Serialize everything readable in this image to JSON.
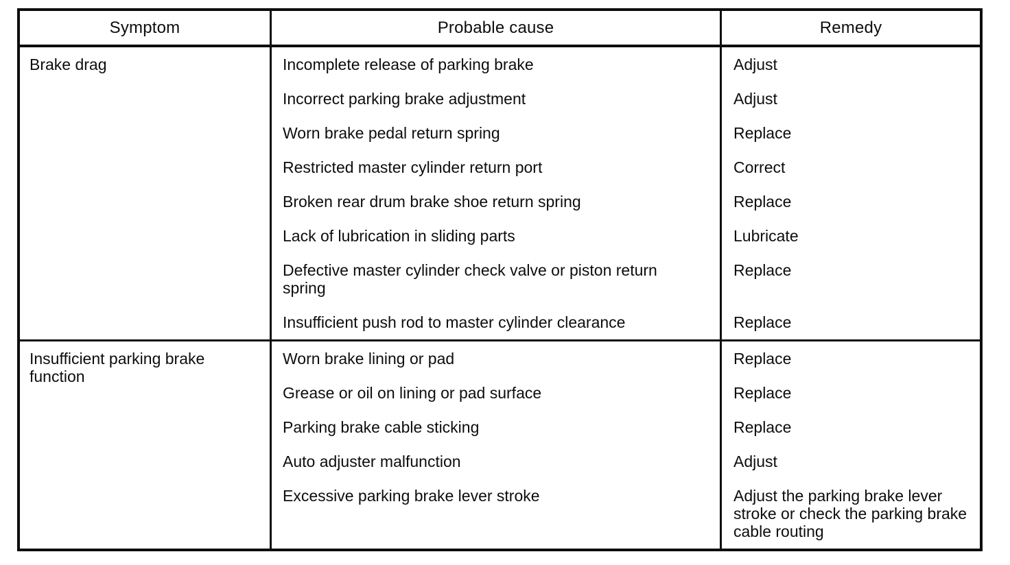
{
  "table": {
    "headers": [
      "Symptom",
      "Probable cause",
      "Remedy"
    ],
    "rows": [
      {
        "symptom": "Brake drag",
        "items": [
          {
            "cause": "Incomplete release of parking brake",
            "remedy": "Adjust"
          },
          {
            "cause": "Incorrect parking brake adjustment",
            "remedy": "Adjust"
          },
          {
            "cause": "Worn brake pedal return spring",
            "remedy": "Replace"
          },
          {
            "cause": "Restricted master cylinder return port",
            "remedy": "Correct"
          },
          {
            "cause": "Broken rear drum brake shoe return spring",
            "remedy": "Replace"
          },
          {
            "cause": "Lack of lubrication in sliding parts",
            "remedy": "Lubricate"
          },
          {
            "cause": "Defective master cylinder check valve or piston return spring",
            "remedy": "Replace"
          },
          {
            "cause": "Insufficient push rod to master cylinder clearance",
            "remedy": "Replace"
          }
        ]
      },
      {
        "symptom": "Insufficient parking brake function",
        "items": [
          {
            "cause": "Worn brake lining or pad",
            "remedy": "Replace"
          },
          {
            "cause": "Grease or oil on lining or pad surface",
            "remedy": "Replace"
          },
          {
            "cause": "Parking brake cable sticking",
            "remedy": "Replace"
          },
          {
            "cause": "Auto adjuster malfunction",
            "remedy": "Adjust"
          },
          {
            "cause": "Excessive parking brake lever stroke",
            "remedy": "Adjust the parking brake lever stroke or check the parking brake cable routing"
          }
        ]
      }
    ]
  }
}
